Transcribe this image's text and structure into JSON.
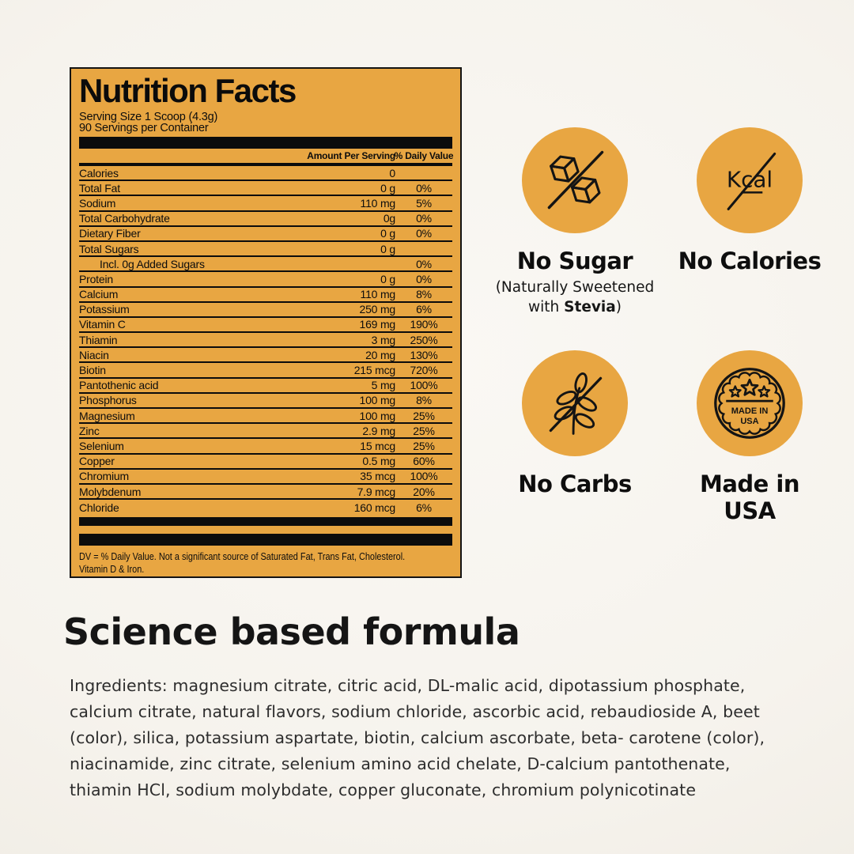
{
  "colors": {
    "accent_orange": "#e8a642",
    "ink": "#0d0d0d",
    "page_background": "#f6f3ed"
  },
  "nutrition_label": {
    "title": "Nutrition Facts",
    "serving_size": "Serving Size 1 Scoop (4.3g)",
    "servings_per_container": "90 Servings per Container",
    "col_amount": "Amount Per Serving",
    "col_dv": "% Daily Value",
    "rows": [
      {
        "name": "Calories",
        "amount": "0",
        "dv": ""
      },
      {
        "name": "Total Fat",
        "amount": "0 g",
        "dv": "0%"
      },
      {
        "name": "Sodium",
        "amount": "110 mg",
        "dv": "5%"
      },
      {
        "name": "Total Carbohydrate",
        "amount": "0g",
        "dv": "0%"
      },
      {
        "name": "Dietary Fiber",
        "amount": "0 g",
        "dv": "0%"
      },
      {
        "name": "Total Sugars",
        "amount": "0 g",
        "dv": ""
      },
      {
        "name": "Incl. 0g Added Sugars",
        "amount": "",
        "dv": "0%",
        "indent": true
      },
      {
        "name": "Protein",
        "amount": "0 g",
        "dv": "0%"
      },
      {
        "name": "Calcium",
        "amount": "110 mg",
        "dv": "8%"
      },
      {
        "name": "Potassium",
        "amount": "250 mg",
        "dv": "6%"
      },
      {
        "name": "Vitamin C",
        "amount": "169 mg",
        "dv": "190%"
      },
      {
        "name": "Thiamin",
        "amount": "3 mg",
        "dv": "250%"
      },
      {
        "name": "Niacin",
        "amount": "20 mg",
        "dv": "130%"
      },
      {
        "name": "Biotin",
        "amount": "215 mcg",
        "dv": "720%"
      },
      {
        "name": "Pantothenic acid",
        "amount": "5 mg",
        "dv": "100%"
      },
      {
        "name": "Phosphorus",
        "amount": "100 mg",
        "dv": "8%"
      },
      {
        "name": "Magnesium",
        "amount": "100 mg",
        "dv": "25%"
      },
      {
        "name": "Zinc",
        "amount": "2.9 mg",
        "dv": "25%"
      },
      {
        "name": "Selenium",
        "amount": "15 mcg",
        "dv": "25%"
      },
      {
        "name": "Copper",
        "amount": "0.5 mg",
        "dv": "60%"
      },
      {
        "name": "Chromium",
        "amount": "35 mcg",
        "dv": "100%"
      },
      {
        "name": "Molybdenum",
        "amount": "7.9 mcg",
        "dv": "20%"
      },
      {
        "name": "Chloride",
        "amount": "160 mcg",
        "dv": "6%"
      }
    ],
    "footnote_line1": "DV = % Daily Value. Not a significant source of Saturated Fat, Trans Fat, Cholesterol.",
    "footnote_line2": "Vitamin D & Iron."
  },
  "badges": [
    {
      "icon": "sugar-cubes-crossed-icon",
      "label": "No Sugar",
      "subtitle_line1": "(Naturally Sweetened",
      "subtitle_line2_pre": "with ",
      "subtitle_line2_bold": "Stevia",
      "subtitle_line2_post": ")"
    },
    {
      "icon": "kcal-crossed-icon",
      "icon_text": "Kcal",
      "label": "No Calories"
    },
    {
      "icon": "wheat-crossed-icon",
      "label": "No Carbs"
    },
    {
      "icon": "made-in-usa-seal-icon",
      "seal_line1": "MADE IN",
      "seal_line2": "USA",
      "label_top": "Made in",
      "label_bottom": "USA"
    }
  ],
  "bottom": {
    "headline": "Science based formula",
    "ingredients": "Ingredients: magnesium citrate, citric acid, DL-malic acid, dipotassium phosphate, calcium citrate, natural flavors, sodium chloride, ascorbic acid, rebaudioside A, beet (color), silica, potassium aspartate, biotin, calcium ascorbate, beta- carotene (color), niacinamide, zinc citrate, selenium amino acid chelate, D-calcium pantothenate, thiamin HCl, sodium molybdate, copper gluconate, chromium polynicotinate"
  }
}
